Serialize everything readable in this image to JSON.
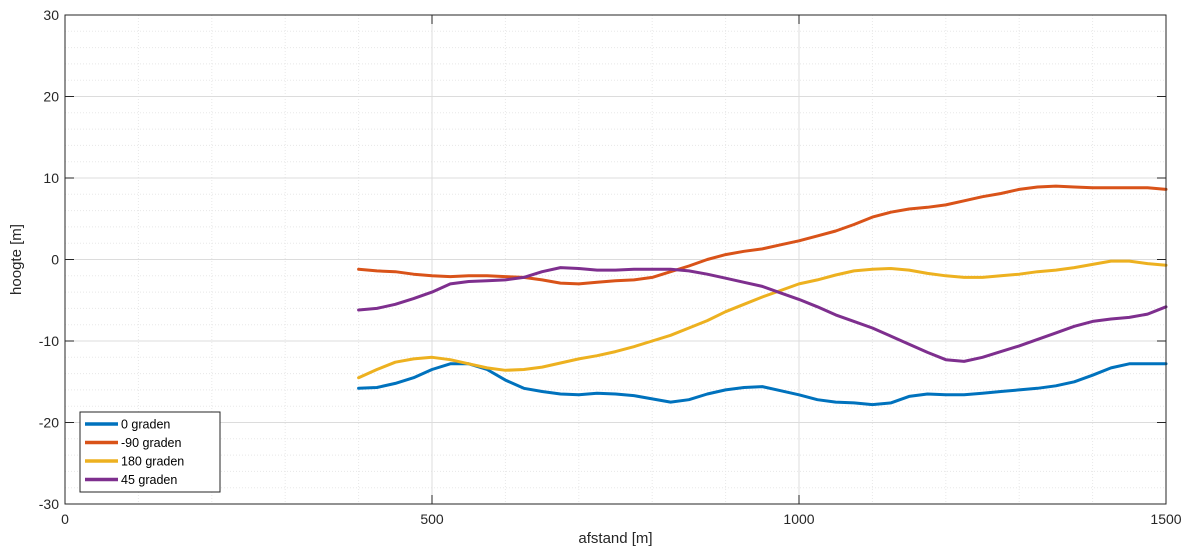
{
  "chart_data": {
    "type": "line",
    "xlabel": "afstand [m]",
    "ylabel": "hoogte [m]",
    "xlim": [
      0,
      1500
    ],
    "ylim": [
      -30,
      30
    ],
    "xticks": [
      0,
      500,
      1000,
      1500
    ],
    "yticks": [
      -30,
      -20,
      -10,
      0,
      10,
      20,
      30
    ],
    "grid": true,
    "minor_grid": true,
    "legend_position": "bottom-left",
    "series": [
      {
        "name": "0 graden",
        "color": "#0072BD",
        "x": [
          400,
          425,
          450,
          475,
          500,
          525,
          550,
          575,
          600,
          625,
          650,
          675,
          700,
          725,
          750,
          775,
          800,
          825,
          850,
          875,
          900,
          925,
          950,
          975,
          1000,
          1025,
          1050,
          1075,
          1100,
          1125,
          1150,
          1175,
          1200,
          1225,
          1250,
          1275,
          1300,
          1325,
          1350,
          1375,
          1400,
          1425,
          1450,
          1475,
          1500
        ],
        "y": [
          -15.8,
          -15.7,
          -15.2,
          -14.5,
          -13.5,
          -12.8,
          -12.8,
          -13.5,
          -14.8,
          -15.8,
          -16.2,
          -16.5,
          -16.6,
          -16.4,
          -16.5,
          -16.7,
          -17.1,
          -17.5,
          -17.2,
          -16.5,
          -16.0,
          -15.7,
          -15.6,
          -16.1,
          -16.6,
          -17.2,
          -17.5,
          -17.6,
          -17.8,
          -17.6,
          -16.8,
          -16.5,
          -16.6,
          -16.6,
          -16.4,
          -16.2,
          -16.0,
          -15.8,
          -15.5,
          -15.0,
          -14.2,
          -13.3,
          -12.8,
          -12.8,
          -12.8
        ]
      },
      {
        "name": "-90 graden",
        "color": "#D95319",
        "x": [
          400,
          425,
          450,
          475,
          500,
          525,
          550,
          575,
          600,
          625,
          650,
          675,
          700,
          725,
          750,
          775,
          800,
          825,
          850,
          875,
          900,
          925,
          950,
          975,
          1000,
          1025,
          1050,
          1075,
          1100,
          1125,
          1150,
          1175,
          1200,
          1225,
          1250,
          1275,
          1300,
          1325,
          1350,
          1375,
          1400,
          1425,
          1450,
          1475,
          1500
        ],
        "y": [
          -1.2,
          -1.4,
          -1.5,
          -1.8,
          -2.0,
          -2.1,
          -2.0,
          -2.0,
          -2.1,
          -2.2,
          -2.5,
          -2.9,
          -3.0,
          -2.8,
          -2.6,
          -2.5,
          -2.2,
          -1.5,
          -0.8,
          0.0,
          0.6,
          1.0,
          1.3,
          1.8,
          2.3,
          2.9,
          3.5,
          4.3,
          5.2,
          5.8,
          6.2,
          6.4,
          6.7,
          7.2,
          7.7,
          8.1,
          8.6,
          8.9,
          9.0,
          8.9,
          8.8,
          8.8,
          8.8,
          8.8,
          8.6
        ]
      },
      {
        "name": "180 graden",
        "color": "#EDB120",
        "x": [
          400,
          425,
          450,
          475,
          500,
          525,
          550,
          575,
          600,
          625,
          650,
          675,
          700,
          725,
          750,
          775,
          800,
          825,
          850,
          875,
          900,
          925,
          950,
          975,
          1000,
          1025,
          1050,
          1075,
          1100,
          1125,
          1150,
          1175,
          1200,
          1225,
          1250,
          1275,
          1300,
          1325,
          1350,
          1375,
          1400,
          1425,
          1450,
          1475,
          1500
        ],
        "y": [
          -14.5,
          -13.5,
          -12.6,
          -12.2,
          -12.0,
          -12.3,
          -12.8,
          -13.3,
          -13.6,
          -13.5,
          -13.2,
          -12.7,
          -12.2,
          -11.8,
          -11.3,
          -10.7,
          -10.0,
          -9.3,
          -8.4,
          -7.5,
          -6.4,
          -5.5,
          -4.6,
          -3.8,
          -3.0,
          -2.5,
          -1.9,
          -1.4,
          -1.2,
          -1.1,
          -1.3,
          -1.7,
          -2.0,
          -2.2,
          -2.2,
          -2.0,
          -1.8,
          -1.5,
          -1.3,
          -1.0,
          -0.6,
          -0.2,
          -0.2,
          -0.5,
          -0.7
        ]
      },
      {
        "name": "45 graden",
        "color": "#7E2F8E",
        "x": [
          400,
          425,
          450,
          475,
          500,
          525,
          550,
          575,
          600,
          625,
          650,
          675,
          700,
          725,
          750,
          775,
          800,
          825,
          850,
          875,
          900,
          925,
          950,
          975,
          1000,
          1025,
          1050,
          1075,
          1100,
          1125,
          1150,
          1175,
          1200,
          1225,
          1250,
          1275,
          1300,
          1325,
          1350,
          1375,
          1400,
          1425,
          1450,
          1475,
          1500
        ],
        "y": [
          -6.2,
          -6.0,
          -5.5,
          -4.8,
          -4.0,
          -3.0,
          -2.7,
          -2.6,
          -2.5,
          -2.2,
          -1.5,
          -1.0,
          -1.1,
          -1.3,
          -1.3,
          -1.2,
          -1.2,
          -1.2,
          -1.4,
          -1.8,
          -2.3,
          -2.8,
          -3.3,
          -4.1,
          -4.9,
          -5.8,
          -6.8,
          -7.6,
          -8.4,
          -9.4,
          -10.4,
          -11.4,
          -12.3,
          -12.5,
          -12.0,
          -11.3,
          -10.6,
          -9.8,
          -9.0,
          -8.2,
          -7.6,
          -7.3,
          -7.1,
          -6.7,
          -5.8
        ]
      }
    ]
  }
}
